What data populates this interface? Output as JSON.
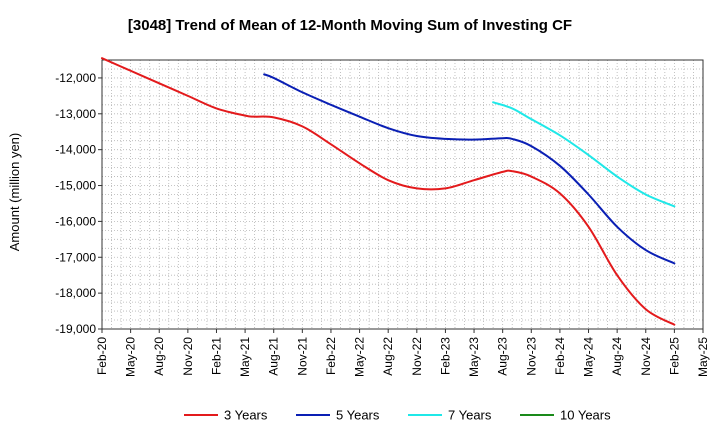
{
  "chart_data": {
    "type": "line",
    "title": "[3048]  Trend of Mean of 12-Month Moving Sum of Investing CF",
    "xlabel": "",
    "ylabel": "Amount (million yen)",
    "ylim": [
      -19000,
      -11500
    ],
    "yticks": [
      -12000,
      -13000,
      -14000,
      -15000,
      -16000,
      -17000,
      -18000,
      -19000
    ],
    "ytick_labels": [
      "-12,000",
      "-13,000",
      "-14,000",
      "-15,000",
      "-16,000",
      "-17,000",
      "-18,000",
      "-19,000"
    ],
    "xtick_labels": [
      "Feb-20",
      "May-20",
      "Aug-20",
      "Nov-20",
      "Feb-21",
      "May-21",
      "Aug-21",
      "Nov-21",
      "Feb-22",
      "May-22",
      "Aug-22",
      "Nov-22",
      "Feb-23",
      "May-23",
      "Aug-23",
      "Nov-23",
      "Feb-24",
      "May-24",
      "Aug-24",
      "Nov-24",
      "Feb-25",
      "May-25"
    ],
    "grid": true,
    "legend_position": "bottom",
    "series": [
      {
        "name": "3 Years",
        "color": "#e31a1c",
        "x": [
          "Feb-20",
          "May-20",
          "Aug-20",
          "Nov-20",
          "Feb-21",
          "May-21",
          "Jun-21",
          "Aug-21",
          "Nov-21",
          "Feb-22",
          "May-22",
          "Aug-22",
          "Nov-22",
          "Feb-23",
          "May-23",
          "Aug-23",
          "Sep-23",
          "Nov-23",
          "Feb-24",
          "May-24",
          "Aug-24",
          "Nov-24",
          "Feb-25"
        ],
        "values": [
          -11450,
          -11800,
          -12150,
          -12500,
          -12850,
          -13050,
          -13080,
          -13100,
          -13350,
          -13850,
          -14380,
          -14850,
          -15080,
          -15080,
          -14850,
          -14620,
          -14600,
          -14750,
          -15220,
          -16150,
          -17500,
          -18450,
          -18880
        ]
      },
      {
        "name": "5 Years",
        "color": "#0a1fb4",
        "x": [
          "Jul-21",
          "Aug-21",
          "Nov-21",
          "Feb-22",
          "May-22",
          "Aug-22",
          "Nov-22",
          "Feb-23",
          "May-23",
          "Aug-23",
          "Sep-23",
          "Nov-23",
          "Feb-24",
          "May-24",
          "Aug-24",
          "Nov-24",
          "Feb-25"
        ],
        "values": [
          -11900,
          -12000,
          -12400,
          -12750,
          -13080,
          -13400,
          -13620,
          -13700,
          -13720,
          -13680,
          -13700,
          -13900,
          -14450,
          -15250,
          -16150,
          -16800,
          -17170
        ]
      },
      {
        "name": "7 Years",
        "color": "#1fe8e8",
        "x": [
          "Jul-23",
          "Sep-23",
          "Nov-23",
          "Feb-24",
          "May-24",
          "Aug-24",
          "Nov-24",
          "Feb-25"
        ],
        "values": [
          -12680,
          -12850,
          -13150,
          -13600,
          -14150,
          -14750,
          -15250,
          -15580
        ]
      },
      {
        "name": "10 Years",
        "color": "#1a8a1a",
        "x": [],
        "values": []
      }
    ]
  }
}
